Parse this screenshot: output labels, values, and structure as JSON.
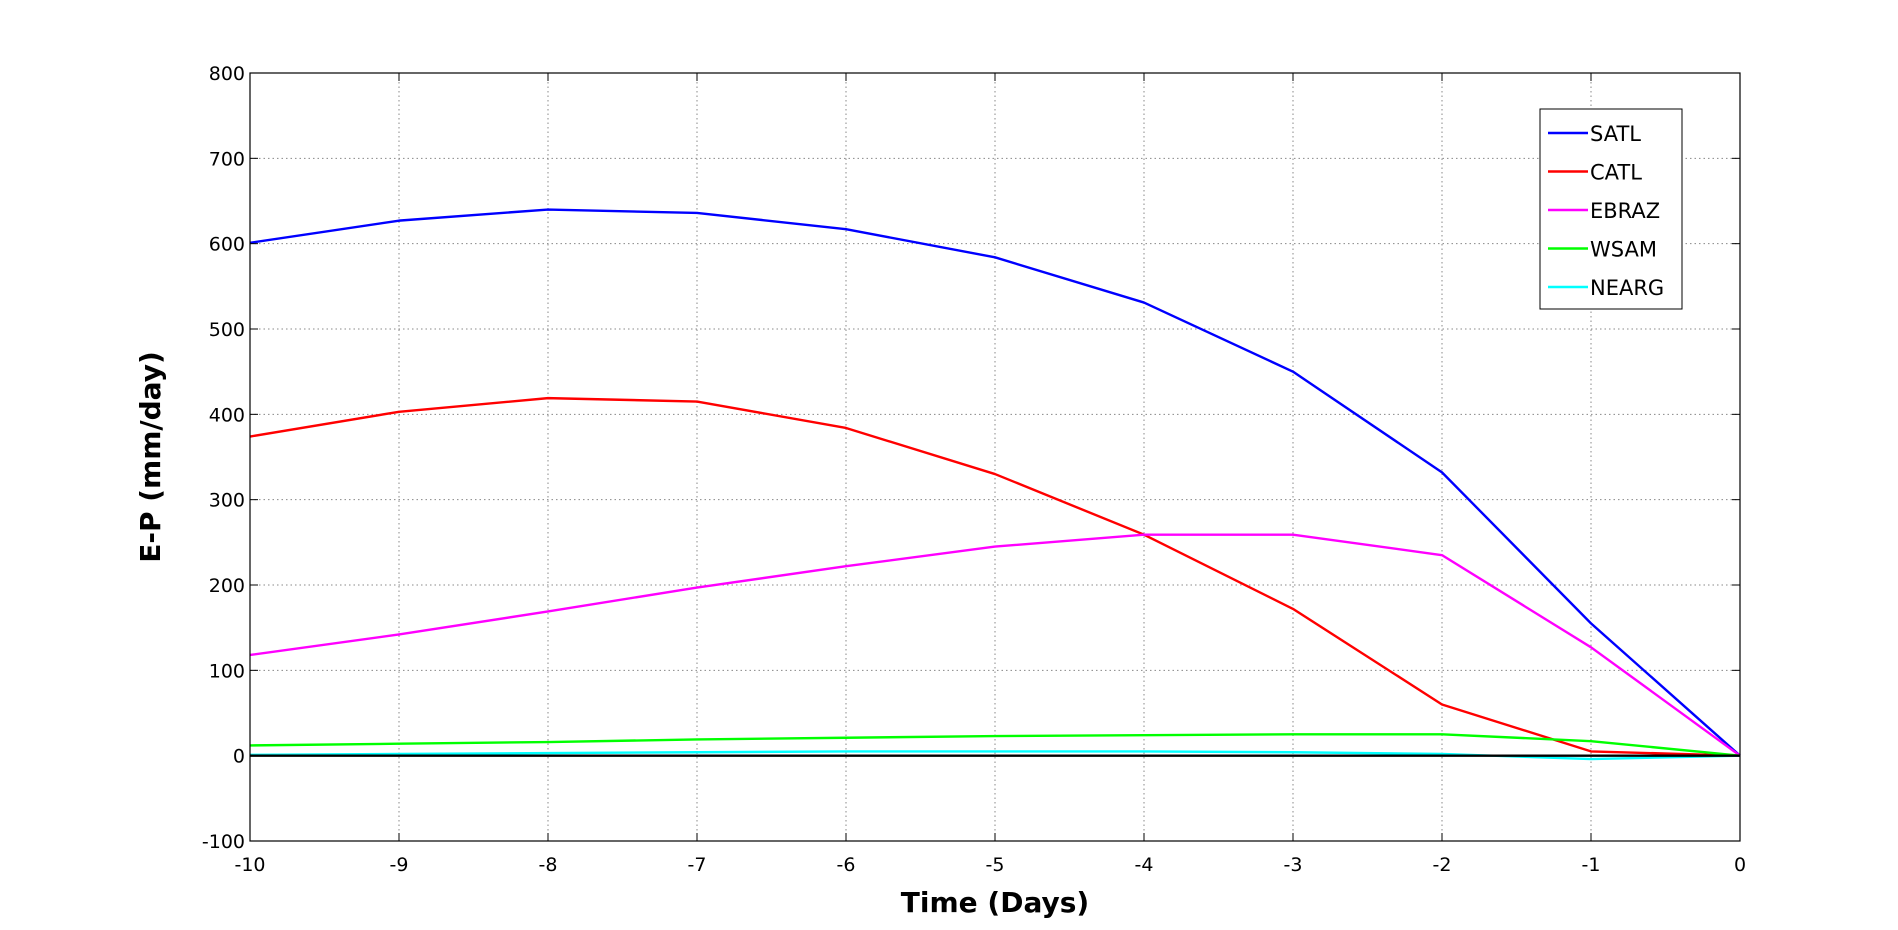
{
  "chart_data": {
    "type": "line",
    "title": "",
    "xlabel": "Time (Days)",
    "ylabel": "E-P (mm/day)",
    "xlim": [
      -10,
      0
    ],
    "ylim": [
      -100,
      800
    ],
    "xticks": [
      -10,
      -9,
      -8,
      -7,
      -6,
      -5,
      -4,
      -3,
      -2,
      -1,
      0
    ],
    "yticks": [
      -100,
      0,
      100,
      200,
      300,
      400,
      500,
      600,
      700,
      800
    ],
    "grid": true,
    "legend_position": "top-right",
    "x": [
      -10,
      -9,
      -8,
      -7,
      -6,
      -5,
      -4,
      -3,
      -2,
      -1,
      0
    ],
    "series": [
      {
        "name": "SATL",
        "color": "#0000ff",
        "values": [
          601,
          627,
          640,
          636,
          617,
          584,
          531,
          450,
          332,
          155,
          0
        ]
      },
      {
        "name": "CATL",
        "color": "#ff0000",
        "values": [
          374,
          403,
          419,
          415,
          384,
          330,
          259,
          172,
          60,
          5,
          0
        ]
      },
      {
        "name": "EBRAZ",
        "color": "#ff00ff",
        "values": [
          118,
          142,
          169,
          197,
          222,
          245,
          259,
          259,
          235,
          127,
          0
        ]
      },
      {
        "name": "WSAM",
        "color": "#00ff00",
        "values": [
          12,
          14,
          16,
          19,
          21,
          23,
          24,
          25,
          25,
          17,
          0
        ]
      },
      {
        "name": "NEARG",
        "color": "#00ffff",
        "values": [
          1,
          2,
          3,
          4,
          5,
          5,
          5,
          4,
          2,
          -4,
          0
        ]
      }
    ],
    "zero_line": {
      "y": 0,
      "color": "#000000"
    }
  }
}
